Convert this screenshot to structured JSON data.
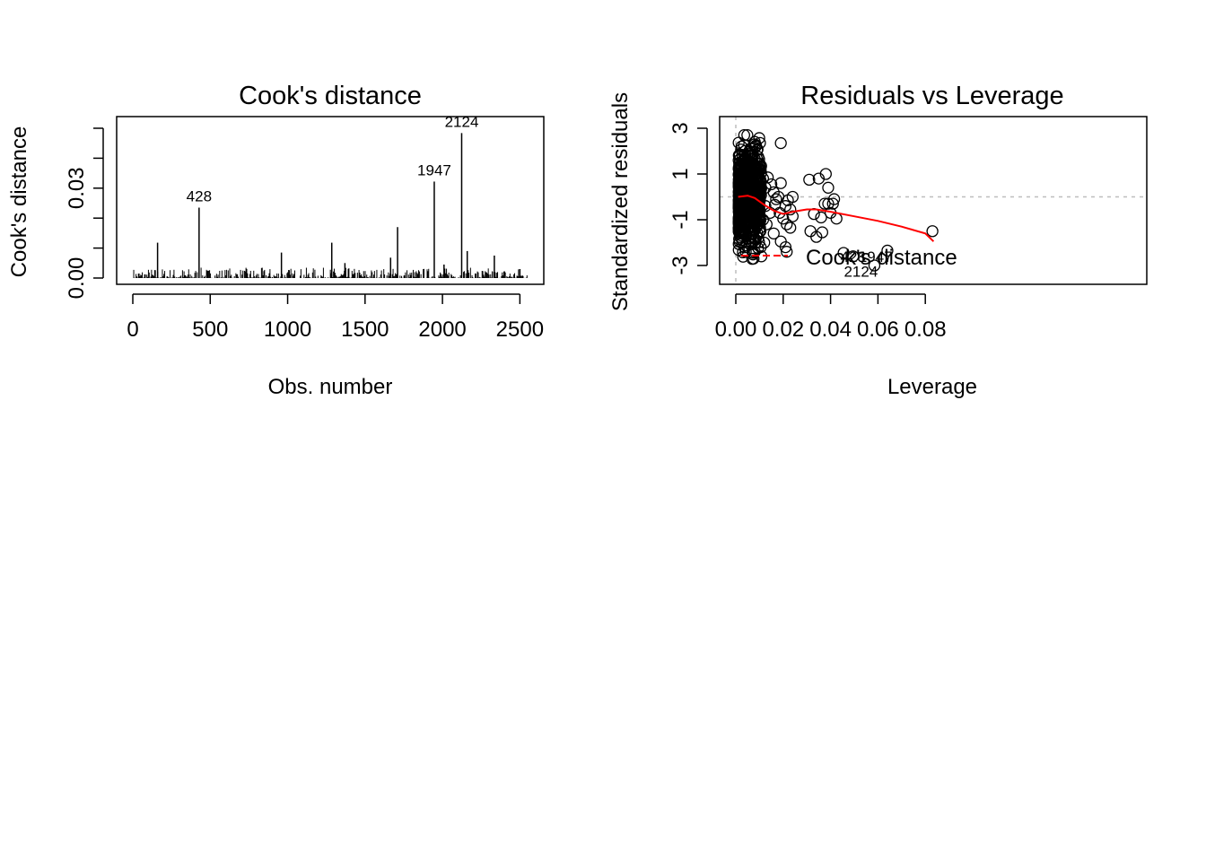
{
  "chart_data": [
    {
      "type": "bar",
      "title": "Cook's distance",
      "xlabel": "Obs. number",
      "ylabel": "Cook's distance",
      "xlim": [
        0,
        2550
      ],
      "ylim": [
        0,
        0.05
      ],
      "xticks": [
        "0",
        "500",
        "1000",
        "1500",
        "2000",
        "2500"
      ],
      "yticks": [
        "0.00",
        "0.03"
      ],
      "ytick_marks": [
        0,
        0.01,
        0.02,
        0.03,
        0.04,
        0.05
      ],
      "grid": false,
      "highlighted": [
        {
          "x": 428,
          "y": 0.0235,
          "label": "428"
        },
        {
          "x": 1947,
          "y": 0.0322,
          "label": "1947"
        },
        {
          "x": 2124,
          "y": 0.0484,
          "label": "2124"
        }
      ],
      "notable_spikes": [
        {
          "x": 160,
          "y": 0.0118
        },
        {
          "x": 960,
          "y": 0.0085
        },
        {
          "x": 1285,
          "y": 0.0118
        },
        {
          "x": 1370,
          "y": 0.005
        },
        {
          "x": 1665,
          "y": 0.0068
        },
        {
          "x": 1710,
          "y": 0.017
        },
        {
          "x": 2010,
          "y": 0.0045
        },
        {
          "x": 2160,
          "y": 0.009
        },
        {
          "x": 2335,
          "y": 0.0075
        },
        {
          "x": 2500,
          "y": 0.003
        }
      ],
      "baseline_max": 0.0035
    },
    {
      "type": "scatter",
      "title": "Residuals vs Leverage",
      "xlabel": "Leverage",
      "ylabel": "Standardized residuals",
      "xlim": [
        0,
        0.085
      ],
      "ylim": [
        -3.2,
        3.4
      ],
      "xticks": [
        "0.00",
        "0.02",
        "0.04",
        "0.06",
        "0.08"
      ],
      "yticks": [
        "3",
        "1",
        "-1",
        "-3"
      ],
      "grid": false,
      "reference_lines": {
        "h": 0,
        "v": 0
      },
      "points": [
        [
          0.019,
          2.35
        ],
        [
          0.0135,
          0.85
        ],
        [
          0.015,
          0.55
        ],
        [
          0.016,
          0.2
        ],
        [
          0.017,
          -0.1
        ],
        [
          0.0165,
          -0.35
        ],
        [
          0.018,
          0.0
        ],
        [
          0.0185,
          -0.7
        ],
        [
          0.019,
          0.6
        ],
        [
          0.02,
          -0.95
        ],
        [
          0.021,
          -0.4
        ],
        [
          0.022,
          -0.15
        ],
        [
          0.023,
          -0.55
        ],
        [
          0.024,
          -0.85
        ],
        [
          0.024,
          0.0
        ],
        [
          0.0215,
          -1.2
        ],
        [
          0.023,
          -1.35
        ],
        [
          0.016,
          -1.6
        ],
        [
          0.019,
          -1.95
        ],
        [
          0.0215,
          -2.4
        ],
        [
          0.021,
          -2.2
        ],
        [
          0.0145,
          -0.7
        ],
        [
          0.013,
          -1.2
        ],
        [
          0.012,
          -2.0
        ],
        [
          0.0105,
          1.2
        ],
        [
          0.0115,
          0.8
        ],
        [
          0.0125,
          0.4
        ],
        [
          0.0125,
          -0.4
        ],
        [
          0.0115,
          -1.0
        ],
        [
          0.0105,
          -2.2
        ],
        [
          0.0108,
          -2.6
        ],
        [
          0.009,
          2.05
        ],
        [
          0.0095,
          -1.8
        ],
        [
          0.008,
          -2.4
        ],
        [
          0.0075,
          -2.7
        ],
        [
          0.008,
          2.3
        ],
        [
          0.031,
          0.75
        ],
        [
          0.035,
          0.8
        ],
        [
          0.038,
          1.0
        ],
        [
          0.039,
          0.4
        ],
        [
          0.0375,
          -0.3
        ],
        [
          0.039,
          -0.3
        ],
        [
          0.041,
          -0.3
        ],
        [
          0.0415,
          -0.1
        ],
        [
          0.04,
          -0.7
        ],
        [
          0.0425,
          -0.95
        ],
        [
          0.033,
          -0.75
        ],
        [
          0.036,
          -0.9
        ],
        [
          0.034,
          -1.75
        ],
        [
          0.0315,
          -1.5
        ],
        [
          0.0365,
          -1.55
        ],
        [
          0.0455,
          -2.45
        ],
        [
          0.0495,
          -2.6
        ],
        [
          0.0585,
          -3.0
        ],
        [
          0.064,
          -2.35
        ],
        [
          0.083,
          -1.5
        ]
      ],
      "smoother": [
        [
          0.001,
          0.0
        ],
        [
          0.005,
          0.05
        ],
        [
          0.008,
          -0.05
        ],
        [
          0.012,
          -0.35
        ],
        [
          0.016,
          -0.6
        ],
        [
          0.02,
          -0.75
        ],
        [
          0.024,
          -0.65
        ],
        [
          0.03,
          -0.55
        ],
        [
          0.034,
          -0.55
        ],
        [
          0.04,
          -0.65
        ],
        [
          0.05,
          -0.85
        ],
        [
          0.06,
          -1.05
        ],
        [
          0.07,
          -1.3
        ],
        [
          0.08,
          -1.6
        ],
        [
          0.0835,
          -1.95
        ]
      ],
      "point_labels": [
        {
          "x": 0.0495,
          "y": -2.6,
          "label": "428"
        },
        {
          "x": 0.059,
          "y": -2.6,
          "label": "1947"
        },
        {
          "x": 0.0528,
          "y": -3.05,
          "label": "2124"
        }
      ],
      "legend": {
        "label": "Cook's distance",
        "position": "bottom-left",
        "color": "#ff0000"
      }
    }
  ],
  "colors": {
    "smoother": "#ff0000",
    "reference": "#bebebe",
    "ink": "#000000"
  }
}
